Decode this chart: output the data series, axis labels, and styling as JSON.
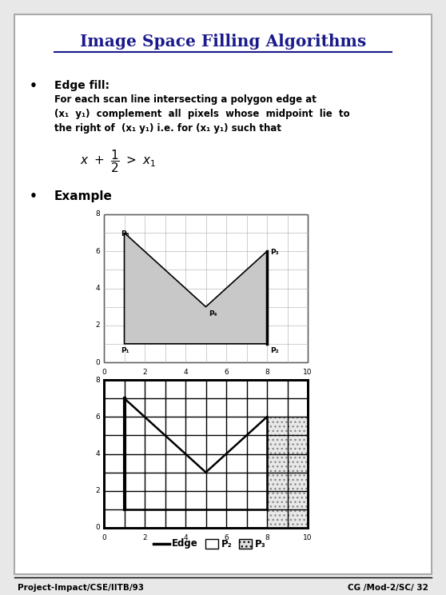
{
  "title": "Image Space Filling Algorithms",
  "title_color": "#1a1a8c",
  "bg_color": "#e8e8e8",
  "slide_bg": "#ffffff",
  "border_color": "#888888",
  "footer_left": "Project-Impact/CSE/IITB/93",
  "footer_right": "CG /Mod-2/SC/ 32",
  "bullet1_title": "Edge fill:",
  "bullet1_text1": "For each scan line intersecting a polygon edge at",
  "bullet1_text2": "(x₁  y₁)  complement  all  pixels  whose  midpoint  lie  to",
  "bullet1_text3": "the right of  (x₁ y₁) i.e. for (x₁ y₁) such that",
  "bullet2_title": "Example",
  "poly_x": [
    1,
    1,
    5,
    8,
    8,
    1
  ],
  "poly_y": [
    1,
    7,
    3,
    6,
    1,
    1
  ],
  "gray_fill": "#c8c8c8",
  "legend_labels": [
    "Edge",
    "P₂",
    "P₃"
  ]
}
